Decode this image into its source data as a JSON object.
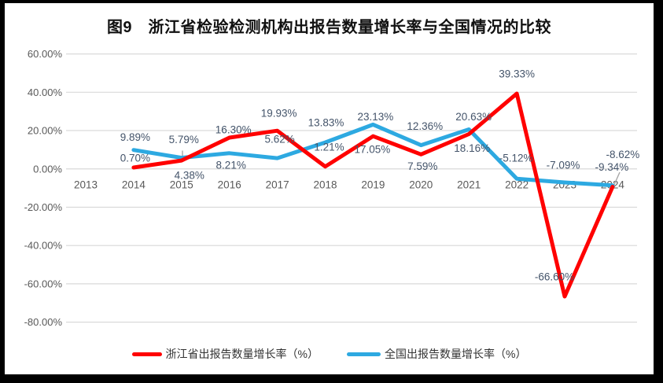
{
  "colors": {
    "frame": "#000000",
    "background": "#FFFFFF",
    "grid": "#D9D9D9",
    "axis_text": "#595959",
    "label_text": "#44546A",
    "title_text": "#111111",
    "leader": "#A6A6A6",
    "series_zhejiang": "#FF0000",
    "series_national": "#2DA9E1"
  },
  "chart_data": {
    "type": "line",
    "title": "图9　浙江省检验检测机构出报告数量增长率与全国情况的比较",
    "x_categories": [
      "2013",
      "2014",
      "2015",
      "2016",
      "2017",
      "2018",
      "2019",
      "2020",
      "2021",
      "2022",
      "2023",
      "2024"
    ],
    "series": [
      {
        "name": "浙江省出报告数量增长率（%）",
        "color": "#FF0000",
        "values": [
          null,
          0.7,
          4.38,
          16.3,
          19.93,
          1.21,
          17.05,
          7.59,
          18.16,
          39.33,
          -66.6,
          -9.34
        ],
        "labels": [
          "",
          "0.70%",
          "4.38%",
          "16.30%",
          "19.93%",
          "1.21%",
          "17.05%",
          "7.59%",
          "18.16%",
          "39.33%",
          "-66.60%",
          "-9.34%"
        ]
      },
      {
        "name": "全国出报告数量增长率（%）",
        "color": "#2DA9E1",
        "values": [
          null,
          9.89,
          5.79,
          8.21,
          5.62,
          13.83,
          23.13,
          12.36,
          20.63,
          -5.12,
          -7.09,
          -8.62
        ],
        "labels": [
          "",
          "9.89%",
          "5.79%",
          "8.21%",
          "5.62%",
          "13.83%",
          "23.13%",
          "12.36%",
          "20.63%",
          "-5.12%",
          "-7.09%",
          "-8.62%"
        ]
      }
    ],
    "ylim": [
      -80,
      60
    ],
    "ytick_step": 20,
    "ytick_labels": [
      "60.00%",
      "40.00%",
      "20.00%",
      "0.00%",
      "-20.00%",
      "-40.00%",
      "-60.00%",
      "-80.00%"
    ],
    "grid": true,
    "legend_position": "bottom"
  }
}
